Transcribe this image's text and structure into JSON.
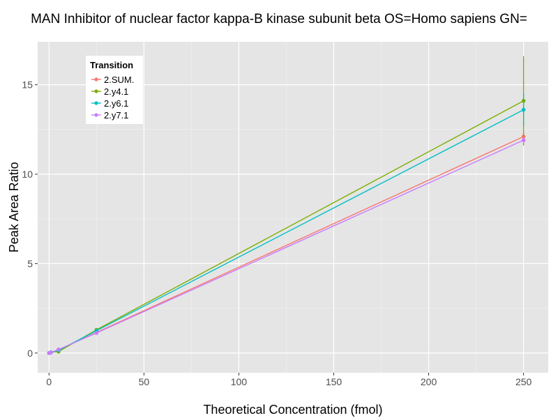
{
  "chart_data": {
    "type": "line",
    "title": "MAN Inhibitor of nuclear factor kappa-B kinase subunit beta OS=Homo sapiens GN=",
    "xlabel": "Theoretical Concentration (fmol)",
    "ylabel": "Peak Area Ratio",
    "xlim": [
      -6,
      263
    ],
    "ylim": [
      -1.1,
      17.4
    ],
    "x_ticks": [
      0,
      50,
      100,
      150,
      200,
      250
    ],
    "y_ticks": [
      0,
      5,
      10,
      15
    ],
    "grid": true,
    "legend": {
      "title": "Transition",
      "placement": "top-left"
    },
    "series": [
      {
        "name": "2.SUM.",
        "color": "#F8766D",
        "points": [
          {
            "x": 0,
            "y": 0.0
          },
          {
            "x": 1,
            "y": 0.03
          },
          {
            "x": 5,
            "y": 0.18
          },
          {
            "x": 25,
            "y": 1.15
          },
          {
            "x": 250,
            "y": 12.1,
            "err": 0.25
          }
        ]
      },
      {
        "name": "2.y4.1",
        "color": "#7CAE00",
        "points": [
          {
            "x": 0,
            "y": 0.0
          },
          {
            "x": 1,
            "y": 0.04
          },
          {
            "x": 5,
            "y": 0.08
          },
          {
            "x": 25,
            "y": 1.3
          },
          {
            "x": 250,
            "y": 14.1,
            "err": 2.5
          }
        ]
      },
      {
        "name": "2.y6.1",
        "color": "#00BFC4",
        "points": [
          {
            "x": 0,
            "y": 0.0
          },
          {
            "x": 1,
            "y": 0.04
          },
          {
            "x": 5,
            "y": 0.15
          },
          {
            "x": 25,
            "y": 1.25
          },
          {
            "x": 250,
            "y": 13.6,
            "err": 0.9
          }
        ]
      },
      {
        "name": "2.y7.1",
        "color": "#C77CFF",
        "points": [
          {
            "x": 0,
            "y": 0.0
          },
          {
            "x": 1,
            "y": 0.03
          },
          {
            "x": 5,
            "y": 0.2
          },
          {
            "x": 25,
            "y": 1.12
          },
          {
            "x": 250,
            "y": 11.9,
            "err": 0.2
          }
        ]
      }
    ]
  }
}
